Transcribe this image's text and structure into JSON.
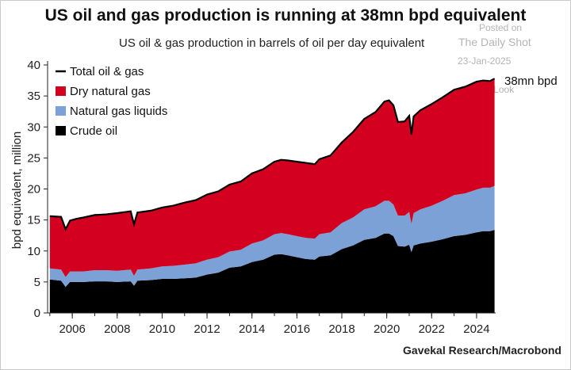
{
  "title": "US oil and gas production is running at 38mn bpd equivalent",
  "subtitle": "US oil & gas production in barrels of oil per day equivalent",
  "source": "Gavekal Research/Macrobond",
  "watermark": {
    "posted": "Posted on",
    "name": "The Daily Shot",
    "date": "23-Jan-2025",
    "brand": "@SoberLook"
  },
  "annotation": "38mn bpd",
  "colors": {
    "crude": "#000000",
    "ngl": "#7ba1d6",
    "dry_gas": "#d4001f",
    "total": "#000000"
  },
  "chart_data": {
    "type": "area",
    "stacked": true,
    "ylabel": "bpd equivalent, million",
    "xlabel": "",
    "ylim": [
      0,
      40
    ],
    "yticks": [
      0,
      5,
      10,
      15,
      20,
      25,
      30,
      35,
      40
    ],
    "xlim": [
      2004.9,
      2024.85
    ],
    "xticks": [
      2006,
      2008,
      2010,
      2012,
      2014,
      2016,
      2018,
      2020,
      2022,
      2024
    ],
    "legend": [
      {
        "label": "Total oil & gas",
        "key": "total"
      },
      {
        "label": "Dry natural gas",
        "key": "dry_gas"
      },
      {
        "label": "Natural gas liquids",
        "key": "ngl"
      },
      {
        "label": "Crude oil",
        "key": "crude"
      }
    ],
    "legend_position": "top-left",
    "x": [
      2005.0,
      2005.5,
      2005.7,
      2005.9,
      2006.2,
      2006.5,
      2007.0,
      2007.5,
      2008.0,
      2008.6,
      2008.75,
      2008.9,
      2009.5,
      2010.0,
      2010.5,
      2011.0,
      2011.5,
      2012.0,
      2012.5,
      2013.0,
      2013.5,
      2014.0,
      2014.5,
      2015.0,
      2015.3,
      2015.6,
      2016.0,
      2016.4,
      2016.8,
      2017.0,
      2017.5,
      2018.0,
      2018.5,
      2019.0,
      2019.5,
      2019.9,
      2020.1,
      2020.3,
      2020.5,
      2020.8,
      2021.0,
      2021.1,
      2021.2,
      2021.5,
      2022.0,
      2022.5,
      2023.0,
      2023.5,
      2024.0,
      2024.3,
      2024.6,
      2024.8
    ],
    "series": [
      {
        "name": "Crude oil",
        "key": "crude",
        "values": [
          5.4,
          5.2,
          4.2,
          5.0,
          5.0,
          5.0,
          5.1,
          5.1,
          5.0,
          5.1,
          4.4,
          5.2,
          5.3,
          5.5,
          5.5,
          5.6,
          5.7,
          6.2,
          6.5,
          7.3,
          7.5,
          8.2,
          8.6,
          9.4,
          9.5,
          9.3,
          9.0,
          8.7,
          8.6,
          9.1,
          9.3,
          10.3,
          10.9,
          11.8,
          12.1,
          12.8,
          12.8,
          12.4,
          10.8,
          10.7,
          11.0,
          9.8,
          10.9,
          11.2,
          11.5,
          11.9,
          12.4,
          12.6,
          13.0,
          13.2,
          13.2,
          13.4
        ]
      },
      {
        "name": "Natural gas liquids",
        "key": "ngl",
        "values": [
          1.8,
          1.8,
          1.6,
          1.7,
          1.7,
          1.7,
          1.8,
          1.8,
          1.8,
          1.9,
          1.6,
          1.8,
          1.9,
          2.0,
          2.1,
          2.2,
          2.3,
          2.4,
          2.5,
          2.6,
          2.7,
          3.0,
          3.1,
          3.3,
          3.4,
          3.4,
          3.4,
          3.4,
          3.4,
          3.6,
          3.7,
          4.2,
          4.5,
          4.9,
          5.1,
          5.3,
          5.3,
          5.1,
          4.9,
          5.0,
          5.3,
          4.6,
          5.2,
          5.5,
          5.8,
          6.2,
          6.6,
          6.7,
          6.9,
          7.0,
          7.0,
          7.1
        ]
      },
      {
        "name": "Dry natural gas",
        "key": "dry_gas",
        "values": [
          8.4,
          8.5,
          7.7,
          8.2,
          8.5,
          8.7,
          8.9,
          9.0,
          9.3,
          9.4,
          8.3,
          9.2,
          9.3,
          9.5,
          9.7,
          10.0,
          10.2,
          10.5,
          10.6,
          10.8,
          11.0,
          11.3,
          11.5,
          11.7,
          11.8,
          11.9,
          12.0,
          12.1,
          12.0,
          12.1,
          12.4,
          13.0,
          13.8,
          14.6,
          15.2,
          16.0,
          16.2,
          16.0,
          15.1,
          15.2,
          15.5,
          14.4,
          15.6,
          16.0,
          16.4,
          16.7,
          17.0,
          17.2,
          17.4,
          17.3,
          17.2,
          17.3
        ]
      }
    ]
  }
}
